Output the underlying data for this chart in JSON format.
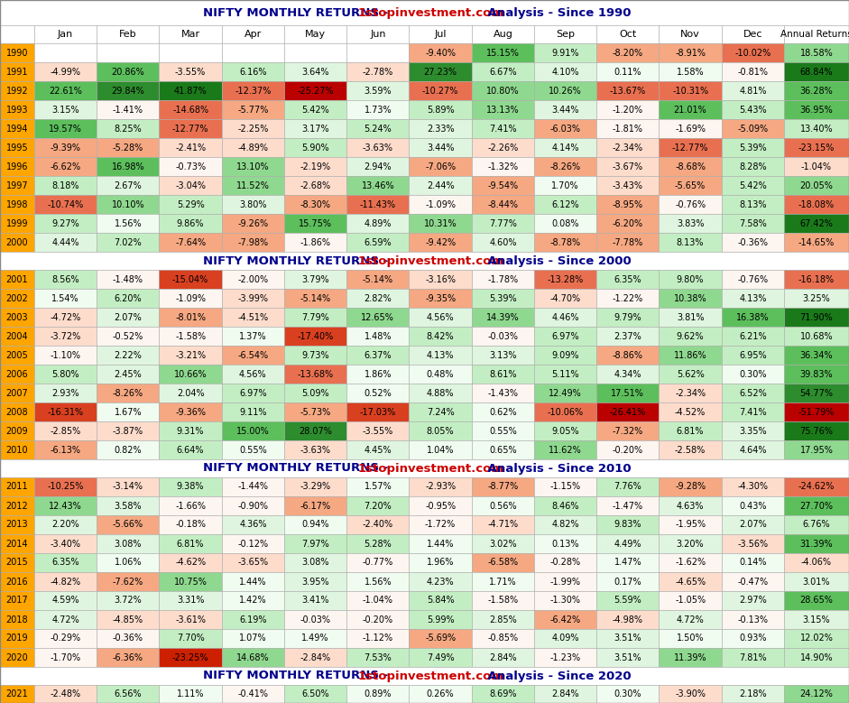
{
  "section_headers": [
    "NIFTY MONTHLY RETURNS - 1stopinvestment.com Analysis - Since 1990",
    "NIFTY MONTHLY RETURNS - 1stopinvestment.com Analysis - Since 2000",
    "NIFTY MONTHLY RETURNS - 1stopinvestment.com Analysis - Since 2010",
    "NIFTY MONTHLY RETURNS - 1stopinvestment.com Analysis - Since 2020"
  ],
  "data": {
    "1990": [
      null,
      null,
      null,
      null,
      null,
      null,
      -9.4,
      15.15,
      9.91,
      -8.2,
      -8.91,
      -10.02,
      18.58
    ],
    "1991": [
      -4.99,
      20.86,
      -3.55,
      6.16,
      3.64,
      -2.78,
      27.23,
      6.67,
      4.1,
      0.11,
      1.58,
      -0.81,
      68.84
    ],
    "1992": [
      22.61,
      29.84,
      41.87,
      -12.37,
      -25.27,
      3.59,
      -10.27,
      10.8,
      10.26,
      -13.67,
      -10.31,
      4.81,
      36.28
    ],
    "1993": [
      3.15,
      -1.41,
      -14.68,
      -5.77,
      5.42,
      1.73,
      5.89,
      13.13,
      3.44,
      -1.2,
      21.01,
      5.43,
      36.95
    ],
    "1994": [
      19.57,
      8.25,
      -12.77,
      -2.25,
      3.17,
      5.24,
      2.33,
      7.41,
      -6.03,
      -1.81,
      -1.69,
      -5.09,
      13.4
    ],
    "1995": [
      -9.39,
      -5.28,
      -2.41,
      -4.89,
      5.9,
      -3.63,
      3.44,
      -2.26,
      4.14,
      -2.34,
      -12.77,
      5.39,
      -23.15
    ],
    "1996": [
      -6.62,
      16.98,
      -0.73,
      13.1,
      -2.19,
      2.94,
      -7.06,
      -1.32,
      -8.26,
      -3.67,
      -8.68,
      8.28,
      -1.04
    ],
    "1997": [
      8.18,
      2.67,
      -3.04,
      11.52,
      -2.68,
      13.46,
      2.44,
      -9.54,
      1.7,
      -3.43,
      -5.65,
      5.42,
      20.05
    ],
    "1998": [
      -10.74,
      10.1,
      5.29,
      3.8,
      -8.3,
      -11.43,
      -1.09,
      -8.44,
      6.12,
      -8.95,
      -0.76,
      8.13,
      -18.08
    ],
    "1999": [
      9.27,
      1.56,
      9.86,
      -9.26,
      15.75,
      4.89,
      10.31,
      7.77,
      0.08,
      -6.2,
      3.83,
      7.58,
      67.42
    ],
    "2000": [
      4.44,
      7.02,
      -7.64,
      -7.98,
      -1.86,
      6.59,
      -9.42,
      4.6,
      -8.78,
      -7.78,
      8.13,
      -0.36,
      -14.65
    ],
    "2001": [
      8.56,
      -1.48,
      -15.04,
      -2.0,
      3.79,
      -5.14,
      -3.16,
      -1.78,
      -13.28,
      6.35,
      9.8,
      -0.76,
      -16.18
    ],
    "2002": [
      1.54,
      6.2,
      -1.09,
      -3.99,
      -5.14,
      2.82,
      -9.35,
      5.39,
      -4.7,
      -1.22,
      10.38,
      4.13,
      3.25
    ],
    "2003": [
      -4.72,
      2.07,
      -8.01,
      -4.51,
      7.79,
      12.65,
      4.56,
      14.39,
      4.46,
      9.79,
      3.81,
      16.38,
      71.9
    ],
    "2004": [
      -3.72,
      -0.52,
      -1.58,
      1.37,
      -17.4,
      1.48,
      8.42,
      -0.03,
      6.97,
      2.37,
      9.62,
      6.21,
      10.68
    ],
    "2005": [
      -1.1,
      2.22,
      -3.21,
      -6.54,
      9.73,
      6.37,
      4.13,
      3.13,
      9.09,
      -8.86,
      11.86,
      6.95,
      36.34
    ],
    "2006": [
      5.8,
      2.45,
      10.66,
      4.56,
      -13.68,
      1.86,
      0.48,
      8.61,
      5.11,
      4.34,
      5.62,
      0.3,
      39.83
    ],
    "2007": [
      2.93,
      -8.26,
      2.04,
      6.97,
      5.09,
      0.52,
      4.88,
      -1.43,
      12.49,
      17.51,
      -2.34,
      6.52,
      54.77
    ],
    "2008": [
      -16.31,
      1.67,
      -9.36,
      9.11,
      -5.73,
      -17.03,
      7.24,
      0.62,
      -10.06,
      -26.41,
      -4.52,
      7.41,
      -51.79
    ],
    "2009": [
      -2.85,
      -3.87,
      9.31,
      15.0,
      28.07,
      -3.55,
      8.05,
      0.55,
      9.05,
      -7.32,
      6.81,
      3.35,
      75.76
    ],
    "2010": [
      -6.13,
      0.82,
      6.64,
      0.55,
      -3.63,
      4.45,
      1.04,
      0.65,
      11.62,
      -0.2,
      -2.58,
      4.64,
      17.95
    ],
    "2011": [
      -10.25,
      -3.14,
      9.38,
      -1.44,
      -3.29,
      1.57,
      -2.93,
      -8.77,
      -1.15,
      7.76,
      -9.28,
      -4.3,
      -24.62
    ],
    "2012": [
      12.43,
      3.58,
      -1.66,
      -0.9,
      -6.17,
      7.2,
      -0.95,
      0.56,
      8.46,
      -1.47,
      4.63,
      0.43,
      27.7
    ],
    "2013": [
      2.2,
      -5.66,
      -0.18,
      4.36,
      0.94,
      -2.4,
      -1.72,
      -4.71,
      4.82,
      9.83,
      -1.95,
      2.07,
      6.76
    ],
    "2014": [
      -3.4,
      3.08,
      6.81,
      -0.12,
      7.97,
      5.28,
      1.44,
      3.02,
      0.13,
      4.49,
      3.2,
      -3.56,
      31.39
    ],
    "2015": [
      6.35,
      1.06,
      -4.62,
      -3.65,
      3.08,
      -0.77,
      1.96,
      -6.58,
      -0.28,
      1.47,
      -1.62,
      0.14,
      -4.06
    ],
    "2016": [
      -4.82,
      -7.62,
      10.75,
      1.44,
      3.95,
      1.56,
      4.23,
      1.71,
      -1.99,
      0.17,
      -4.65,
      -0.47,
      3.01
    ],
    "2017": [
      4.59,
      3.72,
      3.31,
      1.42,
      3.41,
      -1.04,
      5.84,
      -1.58,
      -1.3,
      5.59,
      -1.05,
      2.97,
      28.65
    ],
    "2018": [
      4.72,
      -4.85,
      -3.61,
      6.19,
      -0.03,
      -0.2,
      5.99,
      2.85,
      -6.42,
      -4.98,
      4.72,
      -0.13,
      3.15
    ],
    "2019": [
      -0.29,
      -0.36,
      7.7,
      1.07,
      1.49,
      -1.12,
      -5.69,
      -0.85,
      4.09,
      3.51,
      1.5,
      0.93,
      12.02
    ],
    "2020": [
      -1.7,
      -6.36,
      -23.25,
      14.68,
      -2.84,
      7.53,
      7.49,
      2.84,
      -1.23,
      3.51,
      11.39,
      7.81,
      14.9
    ],
    "2021": [
      -2.48,
      6.56,
      1.11,
      -0.41,
      6.5,
      0.89,
      0.26,
      8.69,
      2.84,
      0.3,
      -3.9,
      2.18,
      24.12
    ]
  },
  "years_order": [
    "1990",
    "1991",
    "1992",
    "1993",
    "1994",
    "1995",
    "1996",
    "1997",
    "1998",
    "1999",
    "2000",
    "2001",
    "2002",
    "2003",
    "2004",
    "2005",
    "2006",
    "2007",
    "2008",
    "2009",
    "2010",
    "2011",
    "2012",
    "2013",
    "2014",
    "2015",
    "2016",
    "2017",
    "2018",
    "2019",
    "2020",
    "2021"
  ],
  "section_years": [
    [
      "1990",
      "1991",
      "1992",
      "1993",
      "1994",
      "1995",
      "1996",
      "1997",
      "1998",
      "1999",
      "2000"
    ],
    [
      "2001",
      "2002",
      "2003",
      "2004",
      "2005",
      "2006",
      "2007",
      "2008",
      "2009",
      "2010"
    ],
    [
      "2011",
      "2012",
      "2013",
      "2014",
      "2015",
      "2016",
      "2017",
      "2018",
      "2019",
      "2020"
    ],
    [
      "2021"
    ]
  ],
  "month_names": [
    "Jan",
    "Feb",
    "Mar",
    "Apr",
    "May",
    "Jun",
    "Jul",
    "Aug",
    "Sep",
    "Oct",
    "Nov",
    "Dec"
  ],
  "title_blue": "#00008B",
  "title_red": "#CC0000",
  "year_bg": "#FFA500",
  "cell_border": "#AAAAAA",
  "font_size": 7.0,
  "header_font_size": 8.0,
  "title_font_size": 9.5
}
